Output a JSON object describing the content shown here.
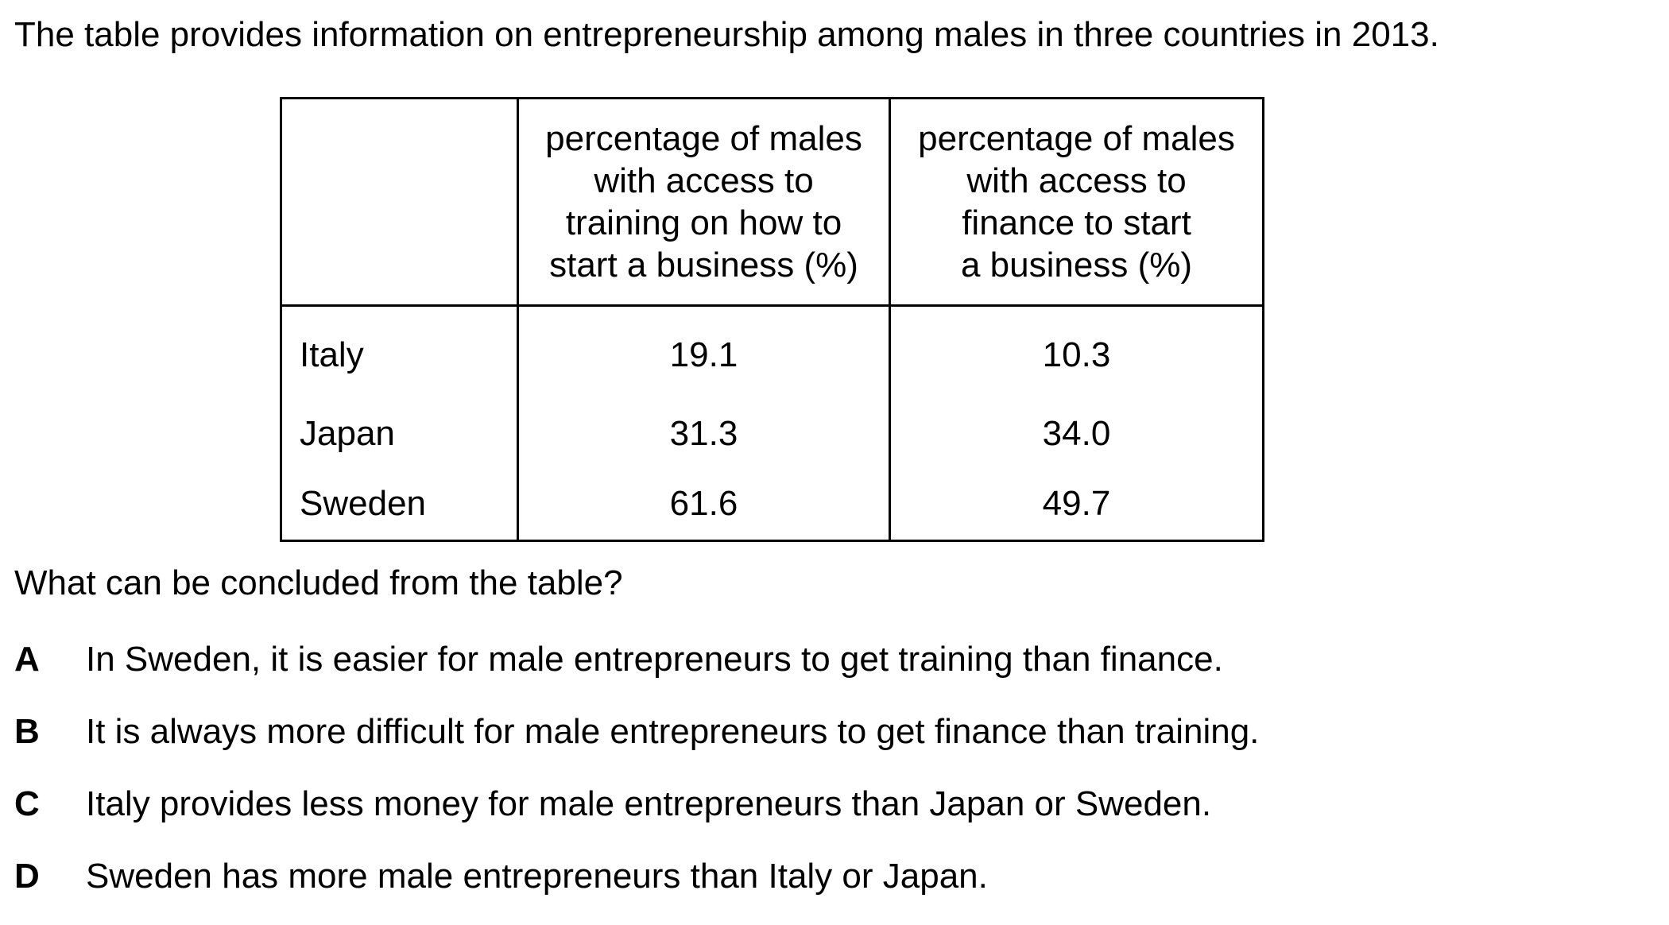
{
  "intro": "The table provides information on entrepreneurship among males in three countries in 2013.",
  "table": {
    "corner": "",
    "headers": [
      [
        "percentage of males",
        "with access to",
        "training on how to",
        "start a business (%)"
      ],
      [
        "percentage of males",
        "with access to",
        "finance to start",
        "a business (%)"
      ]
    ],
    "rows": [
      {
        "country": "Italy",
        "training": "19.1",
        "finance": "10.3"
      },
      {
        "country": "Japan",
        "training": "31.3",
        "finance": "34.0"
      },
      {
        "country": "Sweden",
        "training": "61.6",
        "finance": "49.7"
      }
    ]
  },
  "question": "What can be concluded from the table?",
  "options": [
    {
      "letter": "A",
      "text": "In Sweden, it is easier for male entrepreneurs to get training than finance."
    },
    {
      "letter": "B",
      "text": "It is always more difficult for male entrepreneurs to get finance than training."
    },
    {
      "letter": "C",
      "text": "Italy provides less money for male entrepreneurs than Japan or Sweden."
    },
    {
      "letter": "D",
      "text": "Sweden has more male entrepreneurs than Italy or Japan."
    }
  ]
}
